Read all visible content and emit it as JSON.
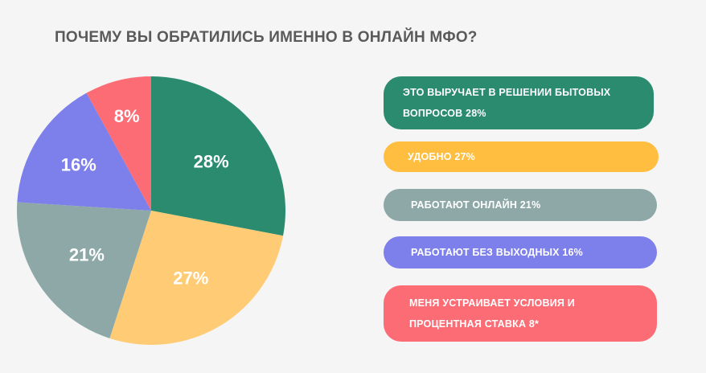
{
  "title": "ПОЧЕМУ ВЫ ОБРАТИЛИСЬ ИМЕННО В ОНЛАЙН МФО?",
  "chart_data": {
    "type": "pie",
    "title": "ПОЧЕМУ ВЫ ОБРАТИЛИСЬ ИМЕННО В ОНЛАЙН МФО?",
    "slices": [
      {
        "name": "ЭТО ВЫРУЧАЕТ В РЕШЕНИИ БЫТОВЫХ ВОПРОСОВ",
        "value": 28,
        "label": "28%",
        "color": "#2a8b6f"
      },
      {
        "name": "УДОБНО",
        "value": 27,
        "label": "27%",
        "color": "#ffcb74"
      },
      {
        "name": "РАБОТАЮТ ОНЛАЙН",
        "value": 21,
        "label": "21%",
        "color": "#8ea8a8"
      },
      {
        "name": "РАБОТАЮТ БЕЗ ВЫХОДНЫХ",
        "value": 16,
        "label": "16%",
        "color": "#7d7fea"
      },
      {
        "name": "МЕНЯ УСТРАИВАЕТ УСЛОВИЯ И ПРОЦЕНТНАЯ СТАВКА",
        "value": 8,
        "label": "8%",
        "color": "#fc6c75"
      }
    ],
    "legend_position": "right"
  },
  "legend": [
    {
      "text": "ЭТО ВЫРУЧАЕТ В РЕШЕНИИ БЫТОВЫХ ВОПРОСОВ 28%",
      "color": "#2a8b6f"
    },
    {
      "text": "УДОБНО 27%",
      "color": "#ffbe40"
    },
    {
      "text": "РАБОТАЮТ ОНЛАЙН 21%",
      "color": "#8ea8a8"
    },
    {
      "text": "РАБОТАЮТ БЕЗ ВЫХОДНЫХ 16%",
      "color": "#7d7fea"
    },
    {
      "text": "МЕНЯ УСТРАИВАЕТ УСЛОВИЯ И ПРОЦЕНТНАЯ СТАВКА  8*",
      "color": "#fc6c75"
    }
  ]
}
